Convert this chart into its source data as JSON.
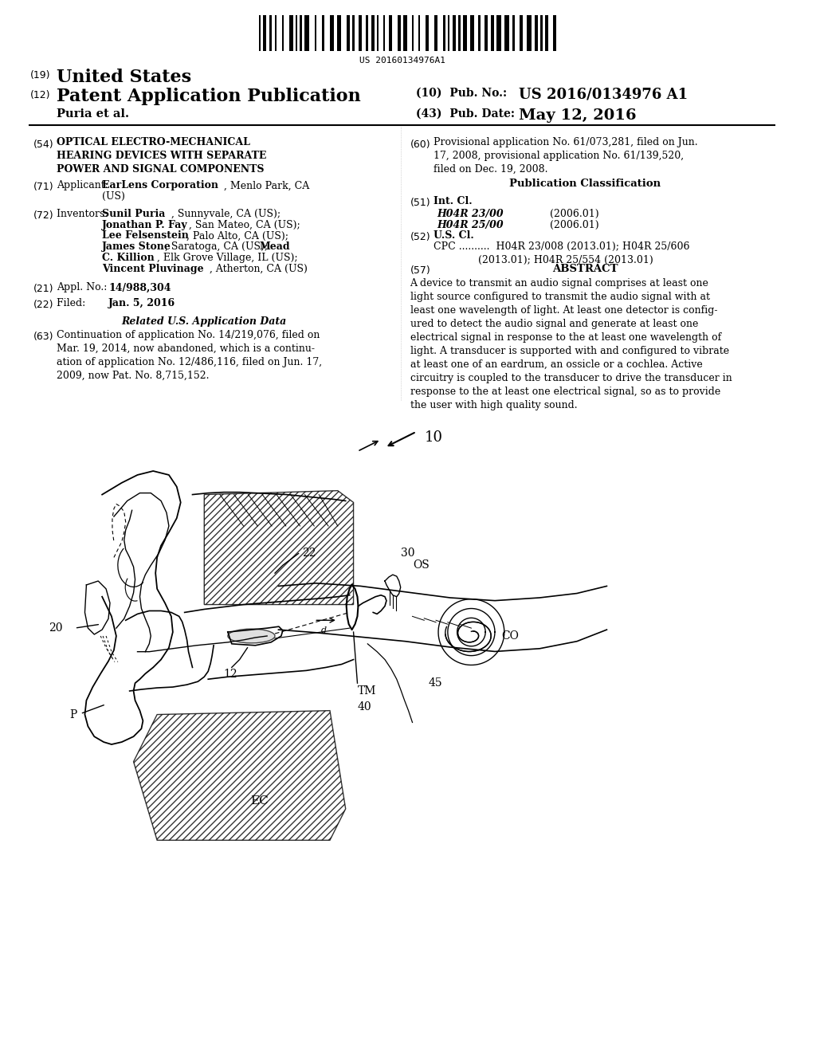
{
  "bg_color": "#ffffff",
  "barcode_text": "US 20160134976A1",
  "patent_number": "US 2016/0134976 A1",
  "pub_date": "May 12, 2016",
  "country": "United States",
  "kind": "Patent Application Publication",
  "authors": "Puria et al.",
  "pub_no_label": "(10) Pub. No.:",
  "pub_date_label": "(43) Pub. Date:",
  "title_num": "(54)",
  "title": "OPTICAL ELECTRO-MECHANICAL\nHEARING DEVICES WITH SEPARATE\nPOWER AND SIGNAL COMPONENTS",
  "applicant_num": "(71)",
  "applicant": "Applicant:  EarLens Corporation, Menlo Park, CA\n         (US)",
  "inventors_num": "(72)",
  "inventors": "Inventors:  Sunil Puria, Sunnyvale, CA (US);\n          Jonathan P. Fay, San Mateo, CA (US);\n          Lee Felsenstein, Palo Alto, CA (US);\n          James Stone, Saratoga, CA (US); Mead\n          C. Killion, Elk Grove Village, IL (US);\n          Vincent Pluvinage, Atherton, CA (US)",
  "appl_no_num": "(21)",
  "appl_no": "Appl. No.:  14/988,304",
  "filed_num": "(22)",
  "filed": "Filed:       Jan. 5, 2016",
  "related_title": "Related U.S. Application Data",
  "related_num": "(63)",
  "related": "Continuation of application No. 14/219,076, filed on\nMar. 19, 2014, now abandoned, which is a continu-\nation of application No. 12/486,116, filed on Jun. 17,\n2009, now Pat. No. 8,715,152.",
  "prov_num": "(60)",
  "prov": "Provisional application No. 61/073,281, filed on Jun.\n17, 2008, provisional application No. 61/139,520,\nfiled on Dec. 19, 2008.",
  "pub_class_title": "Publication Classification",
  "int_cl_num": "(51)",
  "int_cl_title": "Int. Cl.",
  "int_cl_1": "H04R 23/00",
  "int_cl_1_date": "(2006.01)",
  "int_cl_2": "H04R 25/00",
  "int_cl_2_date": "(2006.01)",
  "us_cl_num": "(52)",
  "us_cl_title": "U.S. Cl.",
  "cpc": "CPC ..........  H04R 23/008 (2013.01); H04R 25/606\n            (2013.01); H04R 25/554 (2013.01)",
  "abstract_num": "(57)",
  "abstract_title": "ABSTRACT",
  "abstract_text": "A device to transmit an audio signal comprises at least one\nlight source configured to transmit the audio signal with at\nleast one wavelength of light. At least one detector is config-\nured to detect the audio signal and generate at least one\nelectrical signal in response to the at least one wavelength of\nlight. A transducer is supported with and configured to vibrate\nat least one of an eardrum, an ossicle or a cochlea. Active\ncircuitry is coupled to the transducer to drive the transducer in\nresponse to the at least one electrical signal, so as to provide\nthe user with high quality sound.",
  "fig_label": "10"
}
